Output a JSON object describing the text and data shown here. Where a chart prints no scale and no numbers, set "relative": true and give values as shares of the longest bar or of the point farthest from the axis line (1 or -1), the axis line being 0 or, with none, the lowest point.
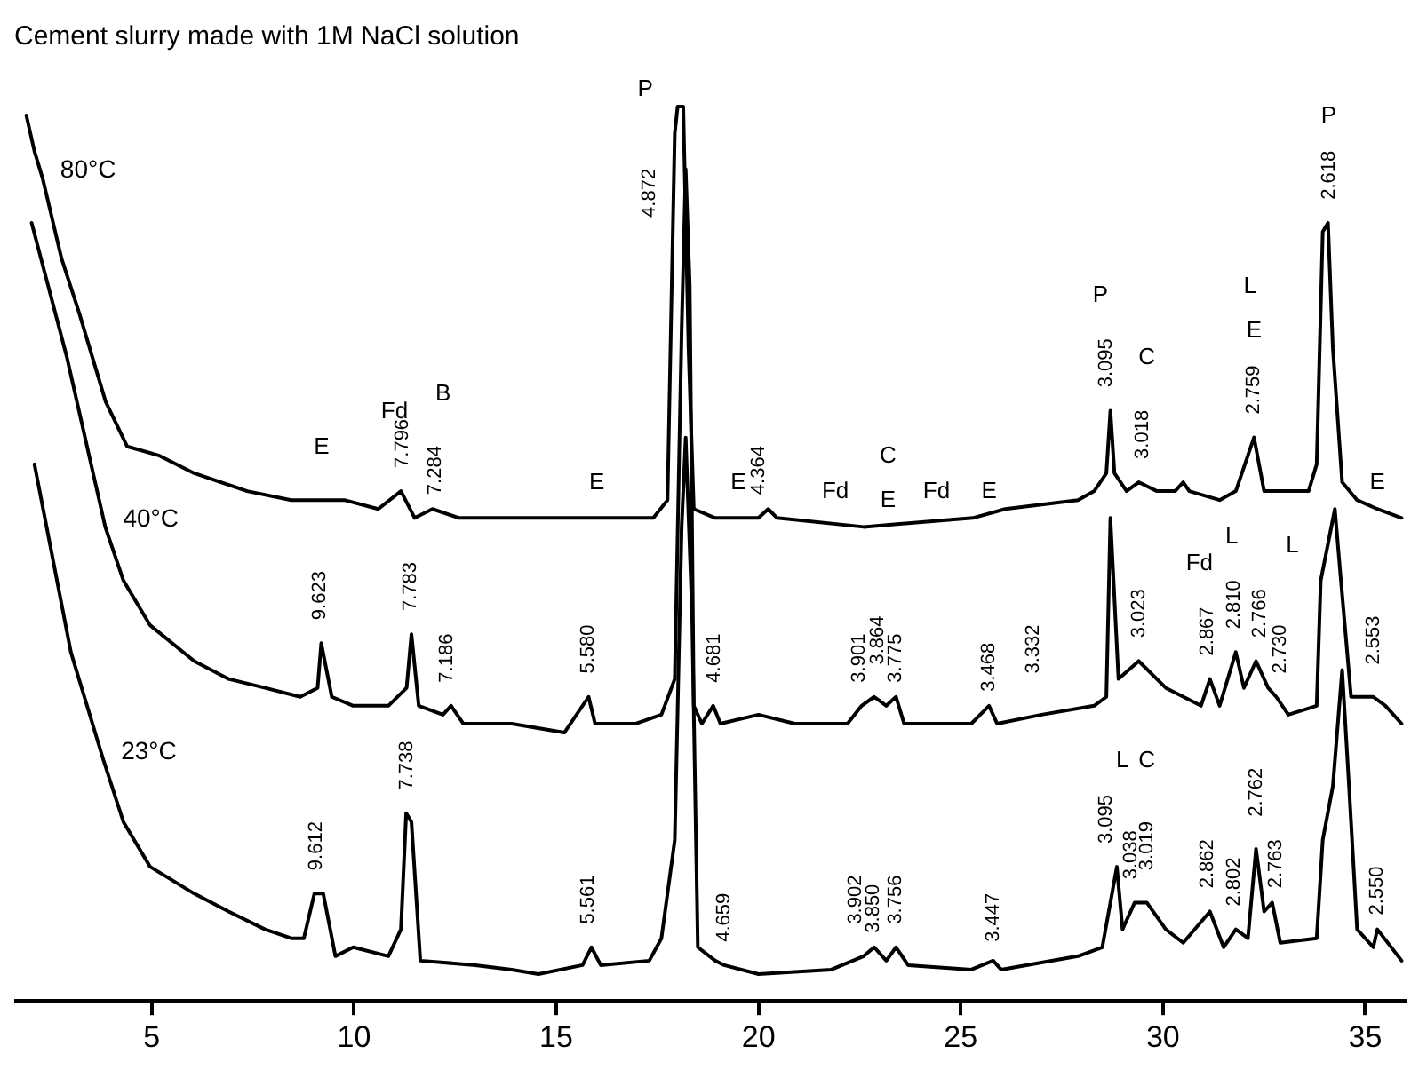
{
  "chart_data": {
    "type": "line",
    "title": "Cement slurry made with 1M NaCl solution",
    "relative": true,
    "grid": false,
    "legend": false,
    "marker": "none",
    "line_style": "solid",
    "tick_labels": "x",
    "xlim": [
      1.6,
      36
    ],
    "xticks": [
      5,
      10,
      15,
      20,
      25,
      30,
      35
    ],
    "series": [
      {
        "name": "80°C",
        "color": "#000000",
        "x": [
          1.9,
          2.1,
          2.3,
          2.77,
          3.2,
          3.86,
          4.39,
          5.17,
          6.05,
          7.36,
          8.45,
          9.76,
          10.6,
          11.16,
          11.5,
          11.94,
          12.6,
          13.9,
          15.65,
          16.97,
          17.4,
          17.75,
          17.93,
          18.0,
          18.14,
          18.27,
          18.4,
          18.93,
          20.0,
          20.24,
          20.46,
          22.6,
          25.3,
          26.1,
          27.9,
          28.3,
          28.6,
          28.7,
          28.8,
          29.1,
          29.4,
          29.85,
          30.3,
          30.5,
          30.65,
          31.4,
          31.8,
          32.25,
          32.5,
          33.6,
          33.8,
          33.95,
          34.08,
          34.2,
          34.43,
          34.8,
          35.3,
          35.9
        ],
        "values": [
          0.99,
          0.95,
          0.92,
          0.83,
          0.77,
          0.67,
          0.62,
          0.61,
          0.59,
          0.57,
          0.56,
          0.56,
          0.55,
          0.57,
          0.54,
          0.55,
          0.54,
          0.54,
          0.54,
          0.54,
          0.54,
          0.56,
          0.97,
          1.0,
          1.0,
          0.73,
          0.55,
          0.54,
          0.54,
          0.55,
          0.54,
          0.53,
          0.54,
          0.55,
          0.56,
          0.57,
          0.59,
          0.66,
          0.59,
          0.57,
          0.58,
          0.57,
          0.57,
          0.58,
          0.57,
          0.56,
          0.57,
          0.63,
          0.57,
          0.57,
          0.6,
          0.86,
          0.87,
          0.73,
          0.58,
          0.56,
          0.55,
          0.54
        ]
      },
      {
        "name": "40°C",
        "color": "#000000",
        "x": [
          2.03,
          2.9,
          3.85,
          4.3,
          4.96,
          6.05,
          6.9,
          7.8,
          8.67,
          9.1,
          9.19,
          9.45,
          9.98,
          10.85,
          11.3,
          11.42,
          11.6,
          12.2,
          12.4,
          12.7,
          13.9,
          15.2,
          15.8,
          15.96,
          16.97,
          17.6,
          17.93,
          18.1,
          18.2,
          18.3,
          18.4,
          18.6,
          18.88,
          19.06,
          20.0,
          20.9,
          22.2,
          22.55,
          22.86,
          23.16,
          23.4,
          23.6,
          25.26,
          25.7,
          25.9,
          27.0,
          28.3,
          28.6,
          28.7,
          28.9,
          29.4,
          30.07,
          30.94,
          31.16,
          31.4,
          31.8,
          32.0,
          32.3,
          32.6,
          32.8,
          33.1,
          33.8,
          33.9,
          34.25,
          34.4,
          34.65,
          35.2,
          35.5,
          35.9
        ],
        "values": [
          0.87,
          0.72,
          0.53,
          0.47,
          0.42,
          0.38,
          0.36,
          0.35,
          0.34,
          0.35,
          0.4,
          0.34,
          0.33,
          0.33,
          0.35,
          0.41,
          0.33,
          0.32,
          0.33,
          0.31,
          0.31,
          0.3,
          0.34,
          0.31,
          0.31,
          0.32,
          0.36,
          0.75,
          0.93,
          0.8,
          0.33,
          0.31,
          0.33,
          0.31,
          0.32,
          0.31,
          0.31,
          0.33,
          0.34,
          0.33,
          0.34,
          0.31,
          0.31,
          0.33,
          0.31,
          0.32,
          0.33,
          0.34,
          0.54,
          0.36,
          0.38,
          0.35,
          0.33,
          0.36,
          0.33,
          0.39,
          0.35,
          0.38,
          0.35,
          0.34,
          0.32,
          0.33,
          0.47,
          0.55,
          0.47,
          0.34,
          0.34,
          0.33,
          0.31
        ]
      },
      {
        "name": "23°C",
        "color": "#000000",
        "x": [
          2.1,
          3.0,
          3.8,
          4.3,
          4.96,
          6.05,
          6.9,
          7.8,
          8.45,
          8.76,
          9.02,
          9.24,
          9.54,
          9.98,
          10.85,
          11.16,
          11.29,
          11.42,
          11.64,
          13.0,
          13.9,
          14.56,
          15.65,
          15.87,
          16.1,
          17.3,
          17.6,
          17.93,
          18.1,
          18.2,
          18.36,
          18.5,
          18.93,
          19.15,
          20.0,
          21.8,
          22.6,
          22.86,
          23.16,
          23.4,
          23.7,
          25.26,
          25.8,
          26.0,
          27.9,
          28.5,
          28.86,
          29.0,
          29.3,
          29.6,
          30.07,
          30.5,
          31.16,
          31.5,
          31.8,
          32.1,
          32.3,
          32.5,
          32.7,
          32.9,
          33.8,
          33.95,
          34.2,
          34.43,
          34.6,
          34.8,
          35.2,
          35.3,
          35.9
        ],
        "values": [
          0.6,
          0.39,
          0.27,
          0.2,
          0.15,
          0.12,
          0.1,
          0.08,
          0.07,
          0.07,
          0.12,
          0.12,
          0.05,
          0.06,
          0.05,
          0.08,
          0.21,
          0.2,
          0.045,
          0.04,
          0.035,
          0.03,
          0.04,
          0.06,
          0.04,
          0.045,
          0.07,
          0.18,
          0.53,
          0.63,
          0.43,
          0.06,
          0.045,
          0.04,
          0.03,
          0.035,
          0.05,
          0.06,
          0.045,
          0.06,
          0.04,
          0.035,
          0.045,
          0.035,
          0.05,
          0.06,
          0.15,
          0.08,
          0.11,
          0.11,
          0.08,
          0.065,
          0.1,
          0.06,
          0.08,
          0.07,
          0.17,
          0.1,
          0.11,
          0.065,
          0.07,
          0.18,
          0.24,
          0.37,
          0.24,
          0.08,
          0.06,
          0.08,
          0.045
        ]
      }
    ],
    "annotations": [
      "P",
      "4.872",
      "E",
      "Fd",
      "B",
      "7.796",
      "7.284",
      "E",
      "E",
      "4.364",
      "Fd",
      "C",
      "E",
      "Fd",
      "E",
      "P",
      "3.095",
      "C",
      "3.018",
      "L",
      "E",
      "2.759",
      "P",
      "2.618",
      "E",
      "9.623",
      "7.783",
      "7.186",
      "5.580",
      "4.681",
      "3.901",
      "3.864",
      "3.775",
      "3.468",
      "3.332",
      "3.023",
      "Fd",
      "L",
      "2.867",
      "2.810",
      "2.766",
      "L",
      "2.730",
      "2.553",
      "9.612",
      "7.738",
      "5.561",
      "4.659",
      "3.902",
      "3.850",
      "3.756",
      "3.447",
      "L",
      "C",
      "3.095",
      "3.038",
      "3.019",
      "2.862",
      "2.802",
      "2.762",
      "2.763",
      "2.550"
    ]
  }
}
